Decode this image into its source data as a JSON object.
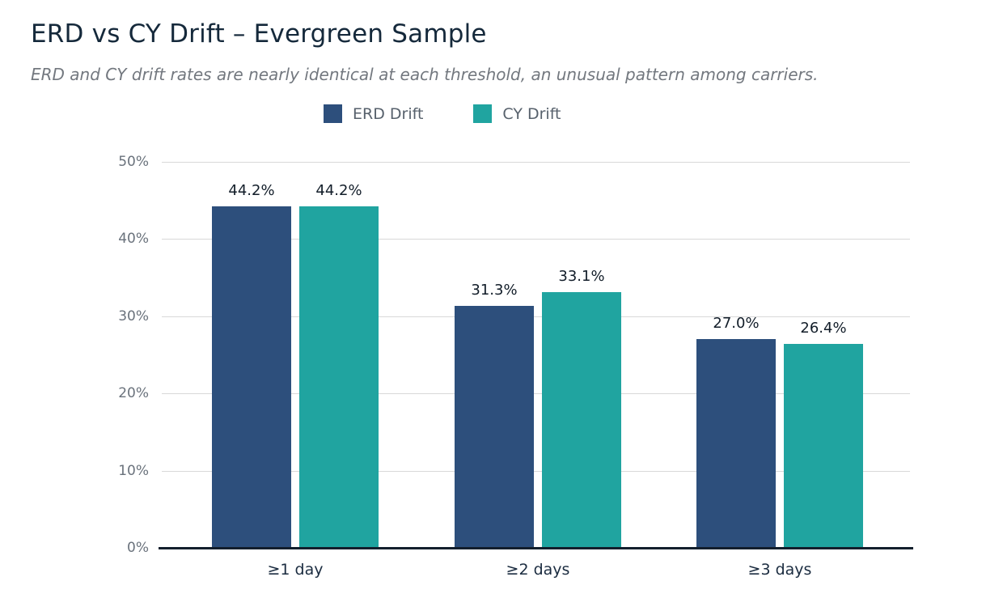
{
  "chart_data": {
    "type": "bar",
    "title": "ERD vs CY Drift – Evergreen Sample",
    "subtitle": "ERD and CY drift rates are nearly identical at each threshold, an unusual pattern among carriers.",
    "categories": [
      "≥1 day",
      "≥2 days",
      "≥3 days"
    ],
    "series": [
      {
        "name": "ERD Drift",
        "color": "#2d4f7c",
        "values": [
          44.2,
          31.3,
          27.0
        ],
        "labels": [
          "44.2%",
          "31.3%",
          "27.0%"
        ]
      },
      {
        "name": "CY Drift",
        "color": "#20a4a0",
        "values": [
          44.2,
          33.1,
          26.4
        ],
        "labels": [
          "44.2%",
          "33.1%",
          "26.4%"
        ]
      }
    ],
    "ylim": [
      0,
      50
    ],
    "y_tick_labels": [
      "0%",
      "10%",
      "20%",
      "30%",
      "40%",
      "50%"
    ],
    "xlabel": "",
    "ylabel": "",
    "grid": true,
    "legend_position": "top-center",
    "value_labels_shown": true
  },
  "colors": {
    "background": "#ffffff",
    "title_text": "#15293b",
    "subtitle_text": "#73787f",
    "legend_text": "#57616c",
    "tick_text": "#6a727c",
    "x_label_text": "#1b2c40",
    "value_label_text": "#121d29",
    "gridline": "#d8d8d8",
    "axis_line": "#131f2d",
    "series_erd": "#2d4f7c",
    "series_cy": "#20a4a0"
  }
}
